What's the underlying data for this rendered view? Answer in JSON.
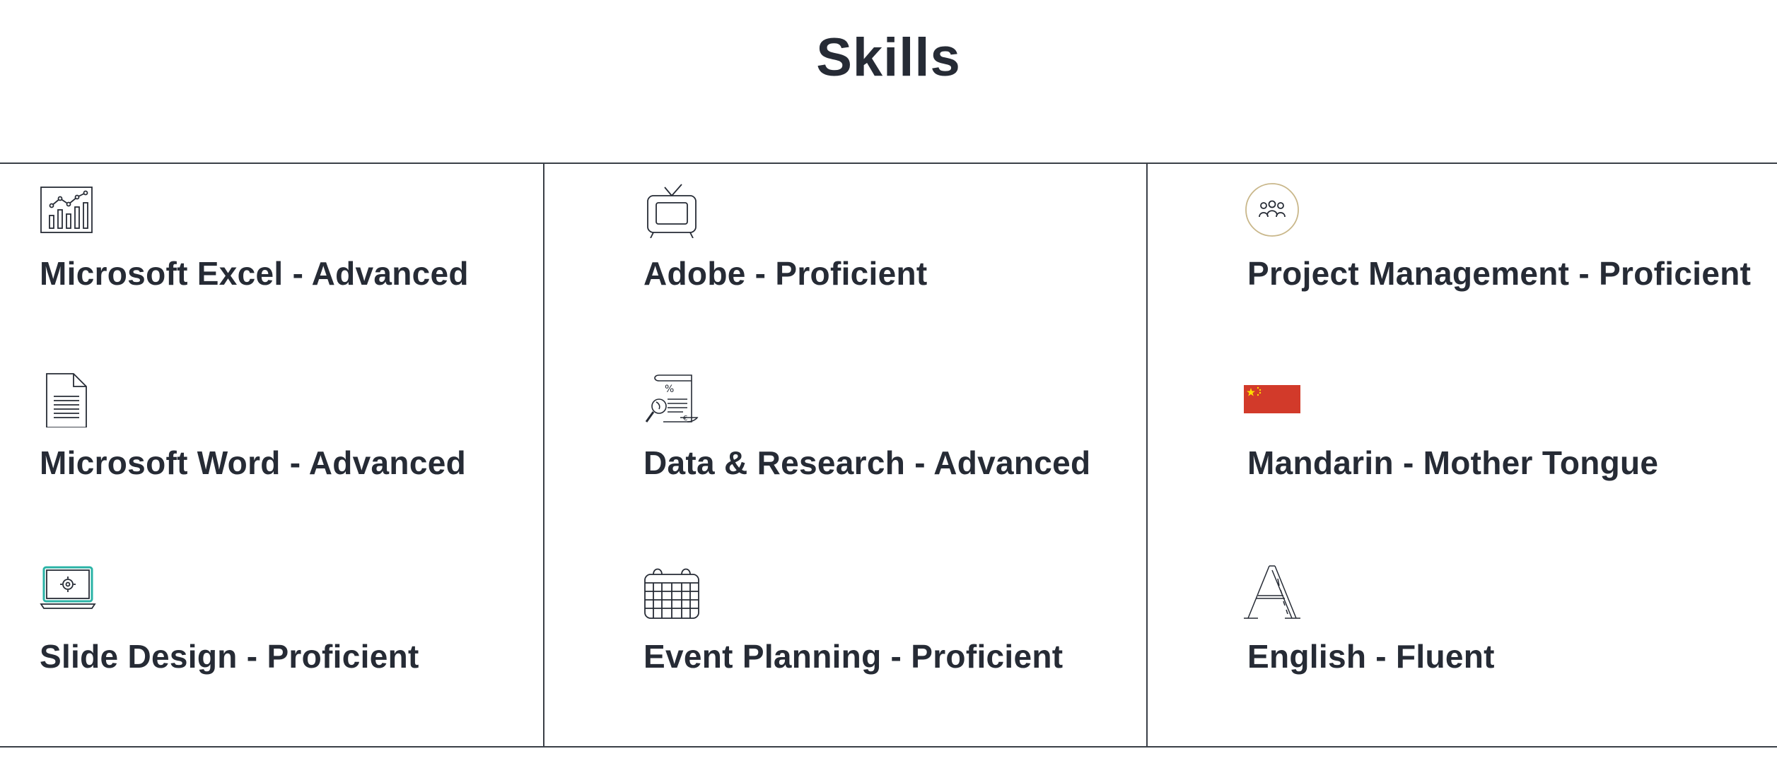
{
  "page": {
    "title": "Skills"
  },
  "skills": [
    {
      "label": "Microsoft Excel - Advanced",
      "icon": "bar-chart-icon"
    },
    {
      "label": "Adobe - Proficient",
      "icon": "tv-icon"
    },
    {
      "label": "Project Management - Proficient",
      "icon": "team-icon"
    },
    {
      "label": "Microsoft Word - Advanced",
      "icon": "document-icon"
    },
    {
      "label": "Data & Research - Advanced",
      "icon": "research-icon"
    },
    {
      "label": "Mandarin - Mother Tongue",
      "icon": "china-flag-icon"
    },
    {
      "label": "Slide Design - Proficient",
      "icon": "laptop-settings-icon"
    },
    {
      "label": "Event Planning - Proficient",
      "icon": "calendar-icon"
    },
    {
      "label": "English - Fluent",
      "icon": "letter-a-icon"
    }
  ],
  "colors": {
    "text": "#262b35",
    "divider": "#3a3f47",
    "flag_red": "#d23a2a",
    "flag_yellow": "#ffde00",
    "ring_gold": "#c9b78a",
    "laptop_teal": "#2ab3a6"
  }
}
